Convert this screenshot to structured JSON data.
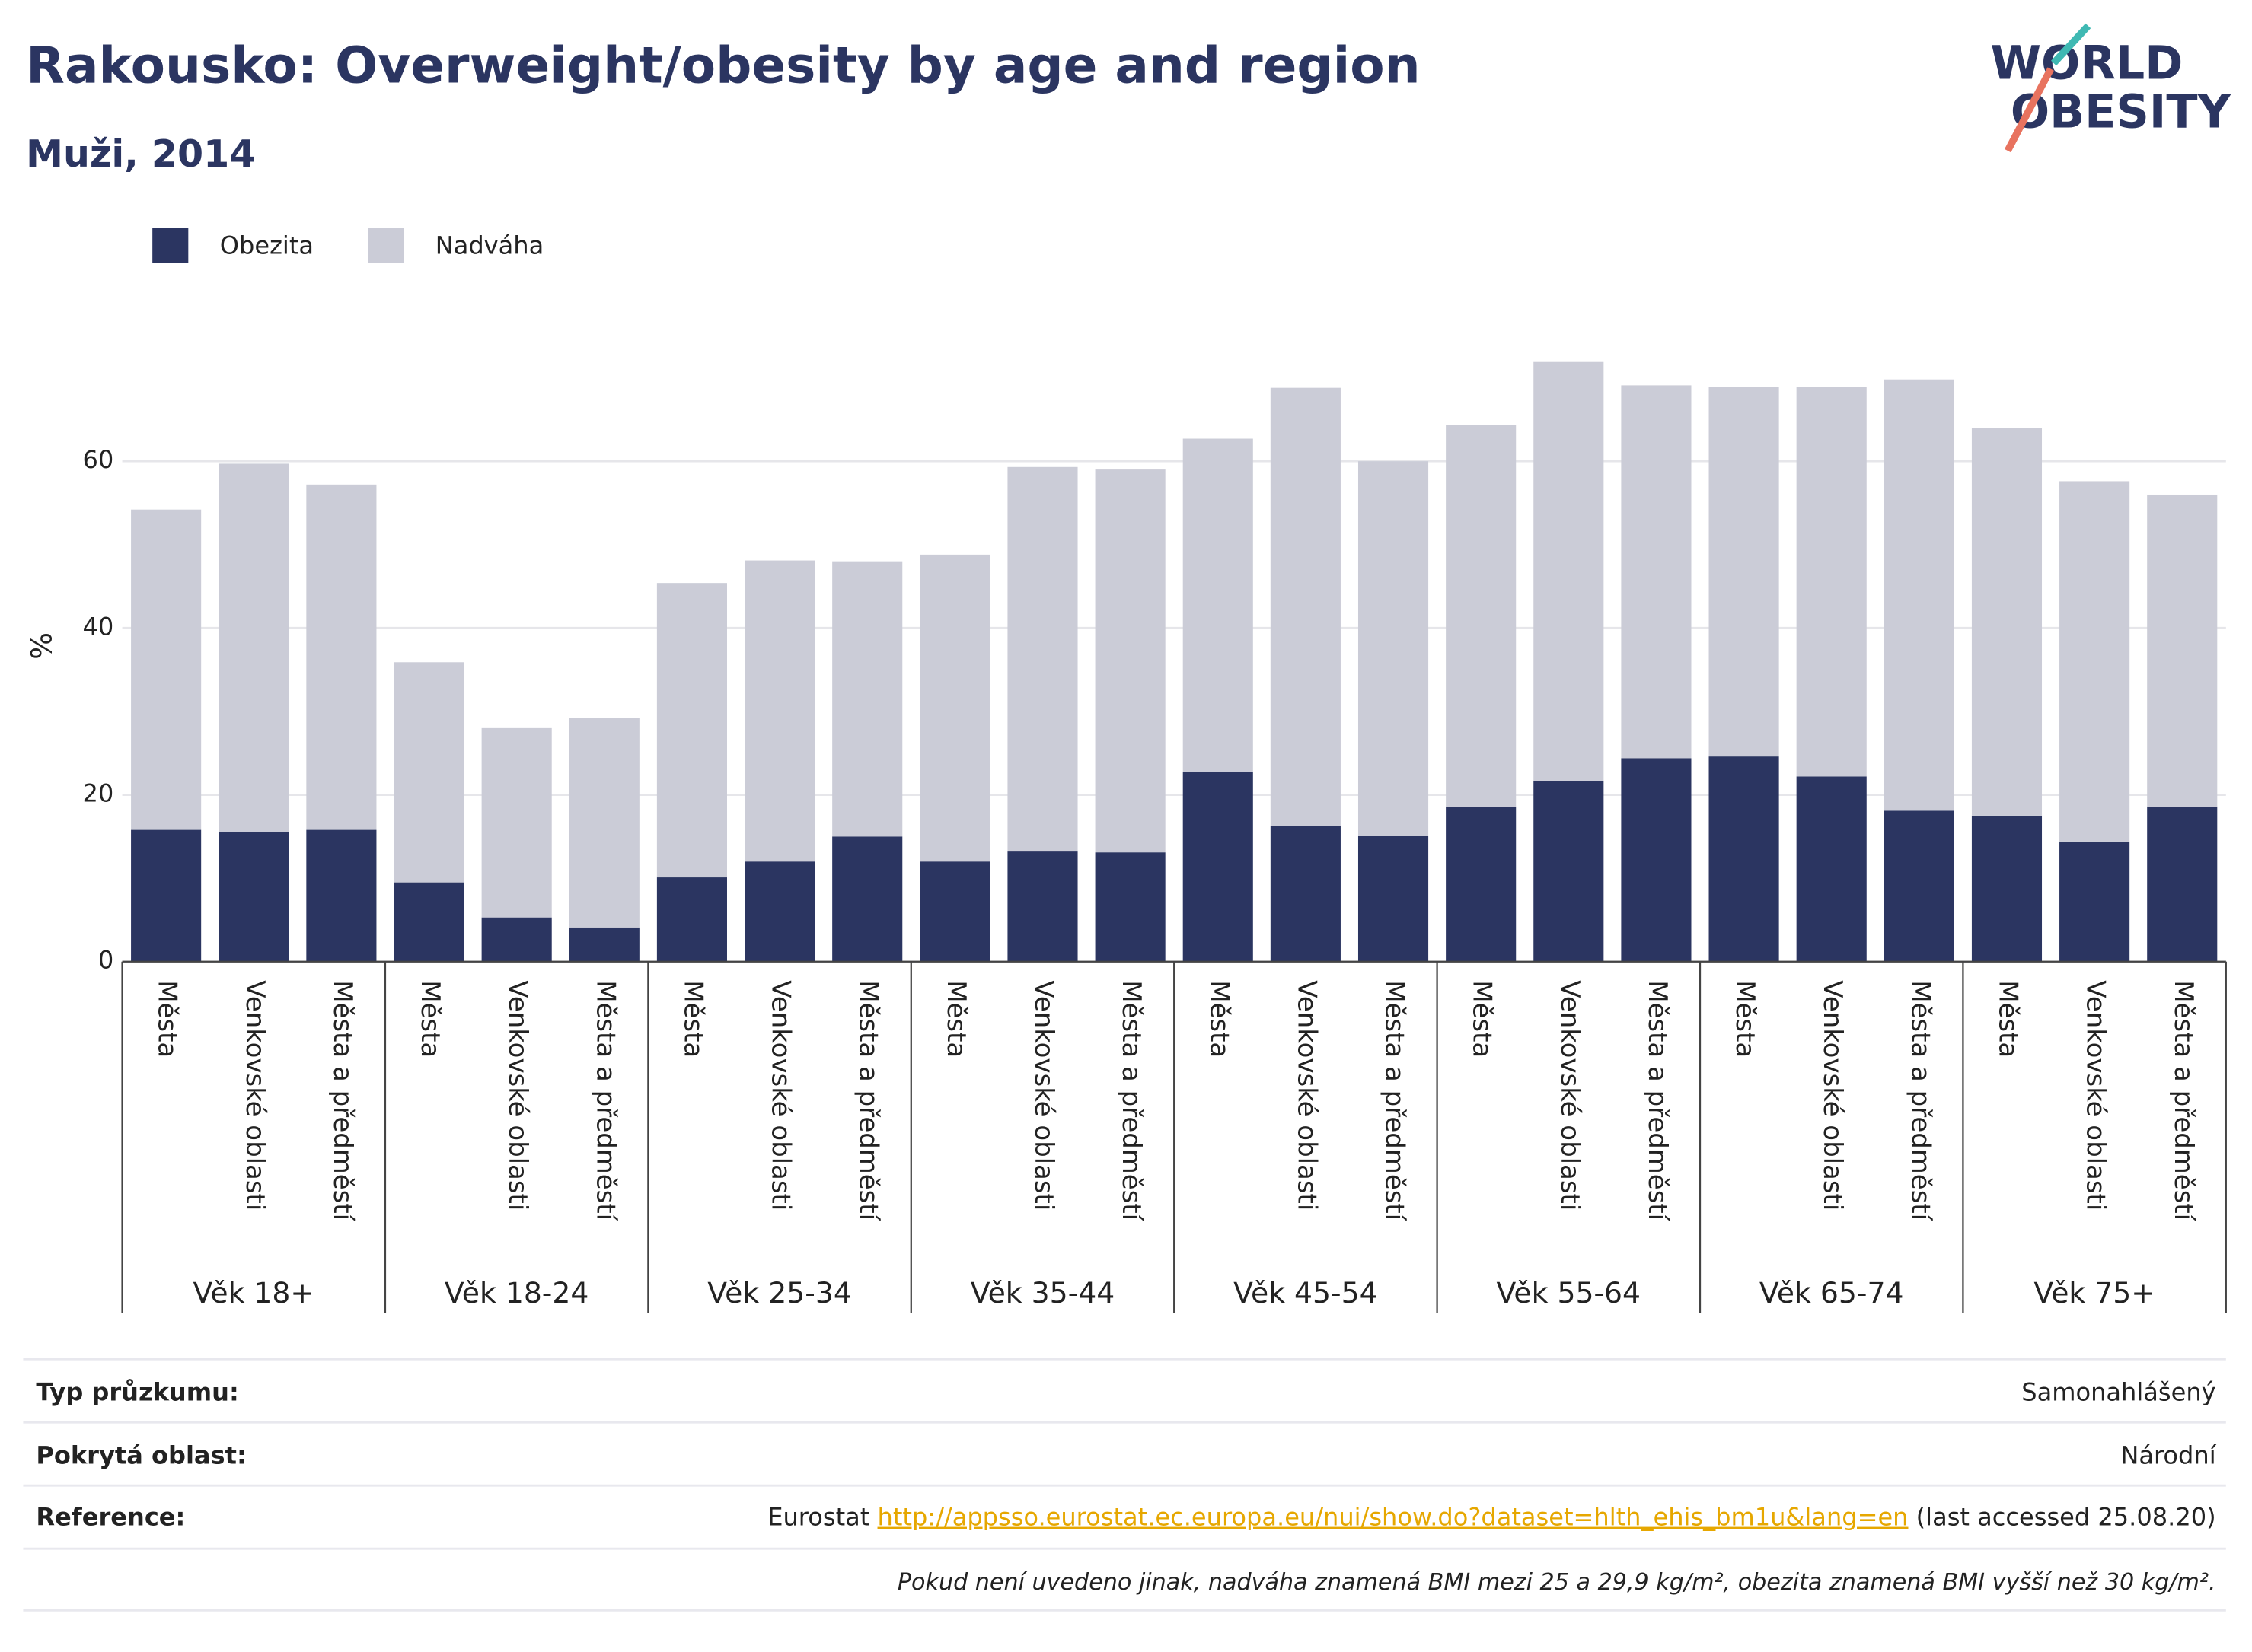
{
  "chart_data": {
    "type": "bar",
    "stacked": true,
    "title": "Rakousko: Overweight/obesity by age and region",
    "subtitle": "Muži, 2014",
    "y_label": "%",
    "categories": [
      "Města",
      "Venkovské oblasti",
      "Města a předměstí",
      "Města",
      "Venkovské oblasti",
      "Města a předměstí",
      "Města",
      "Venkovské oblasti",
      "Města a předměstí",
      "Města",
      "Venkovské oblasti",
      "Města a předměstí",
      "Města",
      "Venkovské oblasti",
      "Města a předměstí",
      "Města",
      "Venkovské oblasti",
      "Města a předměstí",
      "Města",
      "Venkovské oblasti",
      "Města a předměstí",
      "Města",
      "Venkovské oblasti",
      "Města a předměstí"
    ],
    "groups": [
      "Věk 18+",
      "Věk 18-24",
      "Věk 25-34",
      "Věk 35-44",
      "Věk 45-54",
      "Věk 55-64",
      "Věk 65-74",
      "Věk 75+"
    ],
    "series": [
      {
        "name": "Obezita",
        "color": "#2b3561",
        "values": [
          15.8,
          15.5,
          15.8,
          9.5,
          5.3,
          4.1,
          10.1,
          12.0,
          15.0,
          12.0,
          13.2,
          13.1,
          22.7,
          16.3,
          15.1,
          18.6,
          21.7,
          24.4,
          24.6,
          22.2,
          18.1,
          17.5,
          14.4,
          18.6
        ]
      },
      {
        "name": "Nadváha",
        "color": "#cbccd7",
        "values": [
          38.4,
          44.2,
          41.4,
          26.4,
          22.7,
          25.1,
          35.3,
          36.1,
          33.0,
          36.8,
          46.1,
          45.9,
          40.0,
          52.5,
          44.9,
          45.7,
          50.2,
          44.7,
          44.3,
          46.7,
          51.7,
          46.5,
          43.2,
          37.4
        ]
      }
    ],
    "ylim": [
      0,
      74
    ],
    "yticks": [
      0,
      20,
      40,
      60
    ],
    "grid": true
  },
  "logo": [
    "WORLD",
    "OBESITY"
  ],
  "info": {
    "rows": [
      {
        "label": "Typ průzkumu:",
        "value": "Samonahlášený"
      },
      {
        "label": "Pokrytá oblast:",
        "value": "Národní"
      }
    ],
    "reference": {
      "label": "Reference:",
      "prefix": "Eurostat",
      "url": "http://appsso.eurostat.ec.europa.eu/nui/show.do?dataset=hlth_ehis_bm1u&lang=en",
      "suffix": "(last accessed 25.08.20)"
    },
    "note": "Pokud není uvedeno jinak, nadváha znamená BMI mezi 25 a 29,9 kg/m², obezita znamená BMI vyšší než 30 kg/m²."
  }
}
